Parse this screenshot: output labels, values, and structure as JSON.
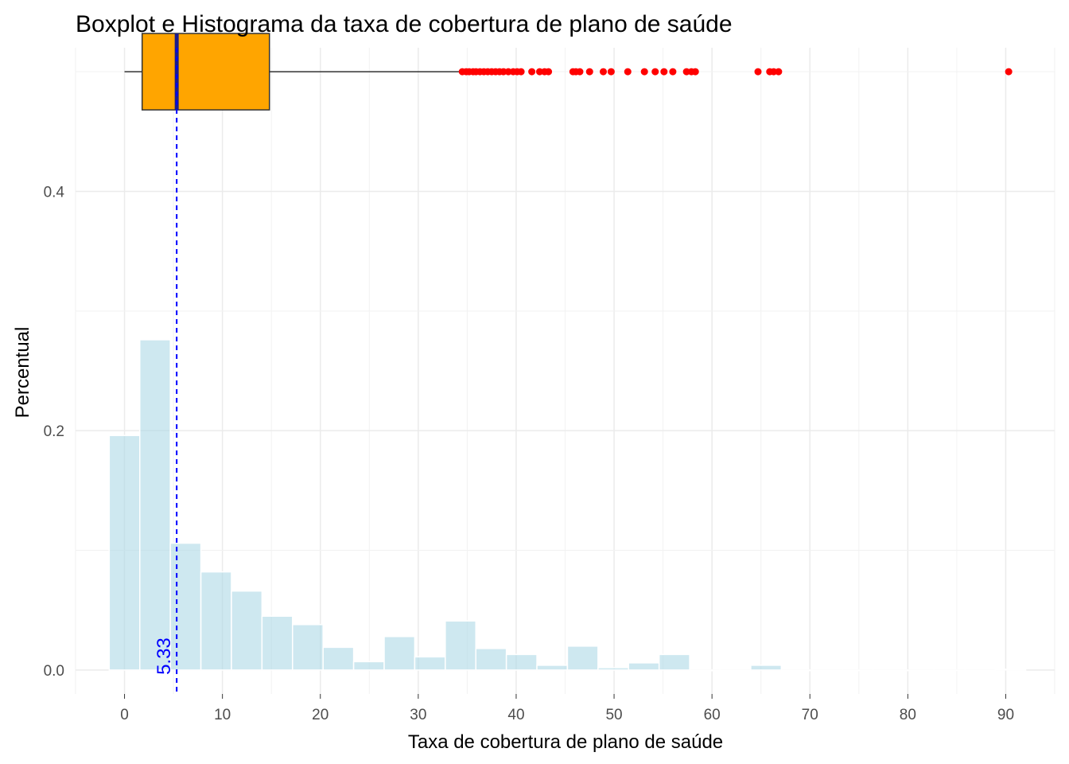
{
  "chart_data": {
    "type": "bar",
    "title": "Boxplot e Histograma da taxa de cobertura de plano de saúde",
    "xlabel": "Taxa de cobertura de plano de saúde",
    "ylabel": "Percentual",
    "xlim": [
      -5,
      95
    ],
    "ylim": [
      -0.02,
      0.52
    ],
    "x_ticks": [
      0,
      10,
      20,
      30,
      40,
      50,
      60,
      70,
      80,
      90
    ],
    "x_tick_labels": [
      "0",
      "10",
      "20",
      "30",
      "40",
      "50",
      "60",
      "70",
      "80",
      "90"
    ],
    "y_ticks": [
      0.0,
      0.2,
      0.4
    ],
    "y_tick_labels": [
      "0.0",
      "0.2",
      "0.4"
    ],
    "grid": true,
    "colors": {
      "histogram_fill": "#add8e6",
      "box_fill": "#ffa500",
      "outlier": "#ff0000",
      "median_line": "#0000ff"
    },
    "histogram": {
      "bin_width": 3.12,
      "bins": [
        {
          "x": 0.0,
          "value": 0.196
        },
        {
          "x": 3.12,
          "value": 0.276
        },
        {
          "x": 6.24,
          "value": 0.106
        },
        {
          "x": 9.36,
          "value": 0.082
        },
        {
          "x": 12.48,
          "value": 0.066
        },
        {
          "x": 15.6,
          "value": 0.045
        },
        {
          "x": 18.72,
          "value": 0.038
        },
        {
          "x": 21.84,
          "value": 0.019
        },
        {
          "x": 24.96,
          "value": 0.007
        },
        {
          "x": 28.08,
          "value": 0.028
        },
        {
          "x": 31.2,
          "value": 0.011
        },
        {
          "x": 34.32,
          "value": 0.041
        },
        {
          "x": 37.44,
          "value": 0.018
        },
        {
          "x": 40.56,
          "value": 0.013
        },
        {
          "x": 43.68,
          "value": 0.004
        },
        {
          "x": 46.8,
          "value": 0.02
        },
        {
          "x": 49.92,
          "value": 0.002
        },
        {
          "x": 53.04,
          "value": 0.006
        },
        {
          "x": 56.16,
          "value": 0.013
        },
        {
          "x": 59.28,
          "value": 0.0
        },
        {
          "x": 62.4,
          "value": 0.0
        },
        {
          "x": 65.52,
          "value": 0.004
        },
        {
          "x": 68.64,
          "value": 0.0
        },
        {
          "x": 71.76,
          "value": 0.0
        },
        {
          "x": 74.88,
          "value": 0.0
        },
        {
          "x": 78.0,
          "value": 0.0
        },
        {
          "x": 81.12,
          "value": 0.0
        },
        {
          "x": 84.24,
          "value": 0.0
        },
        {
          "x": 87.36,
          "value": 0.0
        },
        {
          "x": 90.48,
          "value": 0.0006
        }
      ]
    },
    "boxplot": {
      "y": 0.5,
      "min": 0.0,
      "q1": 1.8,
      "median": 5.33,
      "q3": 14.8,
      "whisker_high": 34.4,
      "outliers": [
        34.5,
        34.9,
        35.2,
        35.6,
        35.9,
        36.3,
        36.7,
        37.1,
        37.5,
        37.9,
        38.3,
        38.7,
        39.2,
        39.7,
        40.1,
        40.5,
        41.6,
        42.4,
        42.9,
        43.3,
        45.8,
        46.1,
        46.5,
        47.5,
        48.9,
        49.7,
        51.4,
        53.1,
        54.2,
        55.1,
        56.0,
        57.4,
        57.9,
        58.3,
        64.7,
        65.9,
        66.3,
        66.8,
        90.3
      ]
    },
    "median_annotation": {
      "x": 5.33,
      "label": "5.33"
    }
  }
}
